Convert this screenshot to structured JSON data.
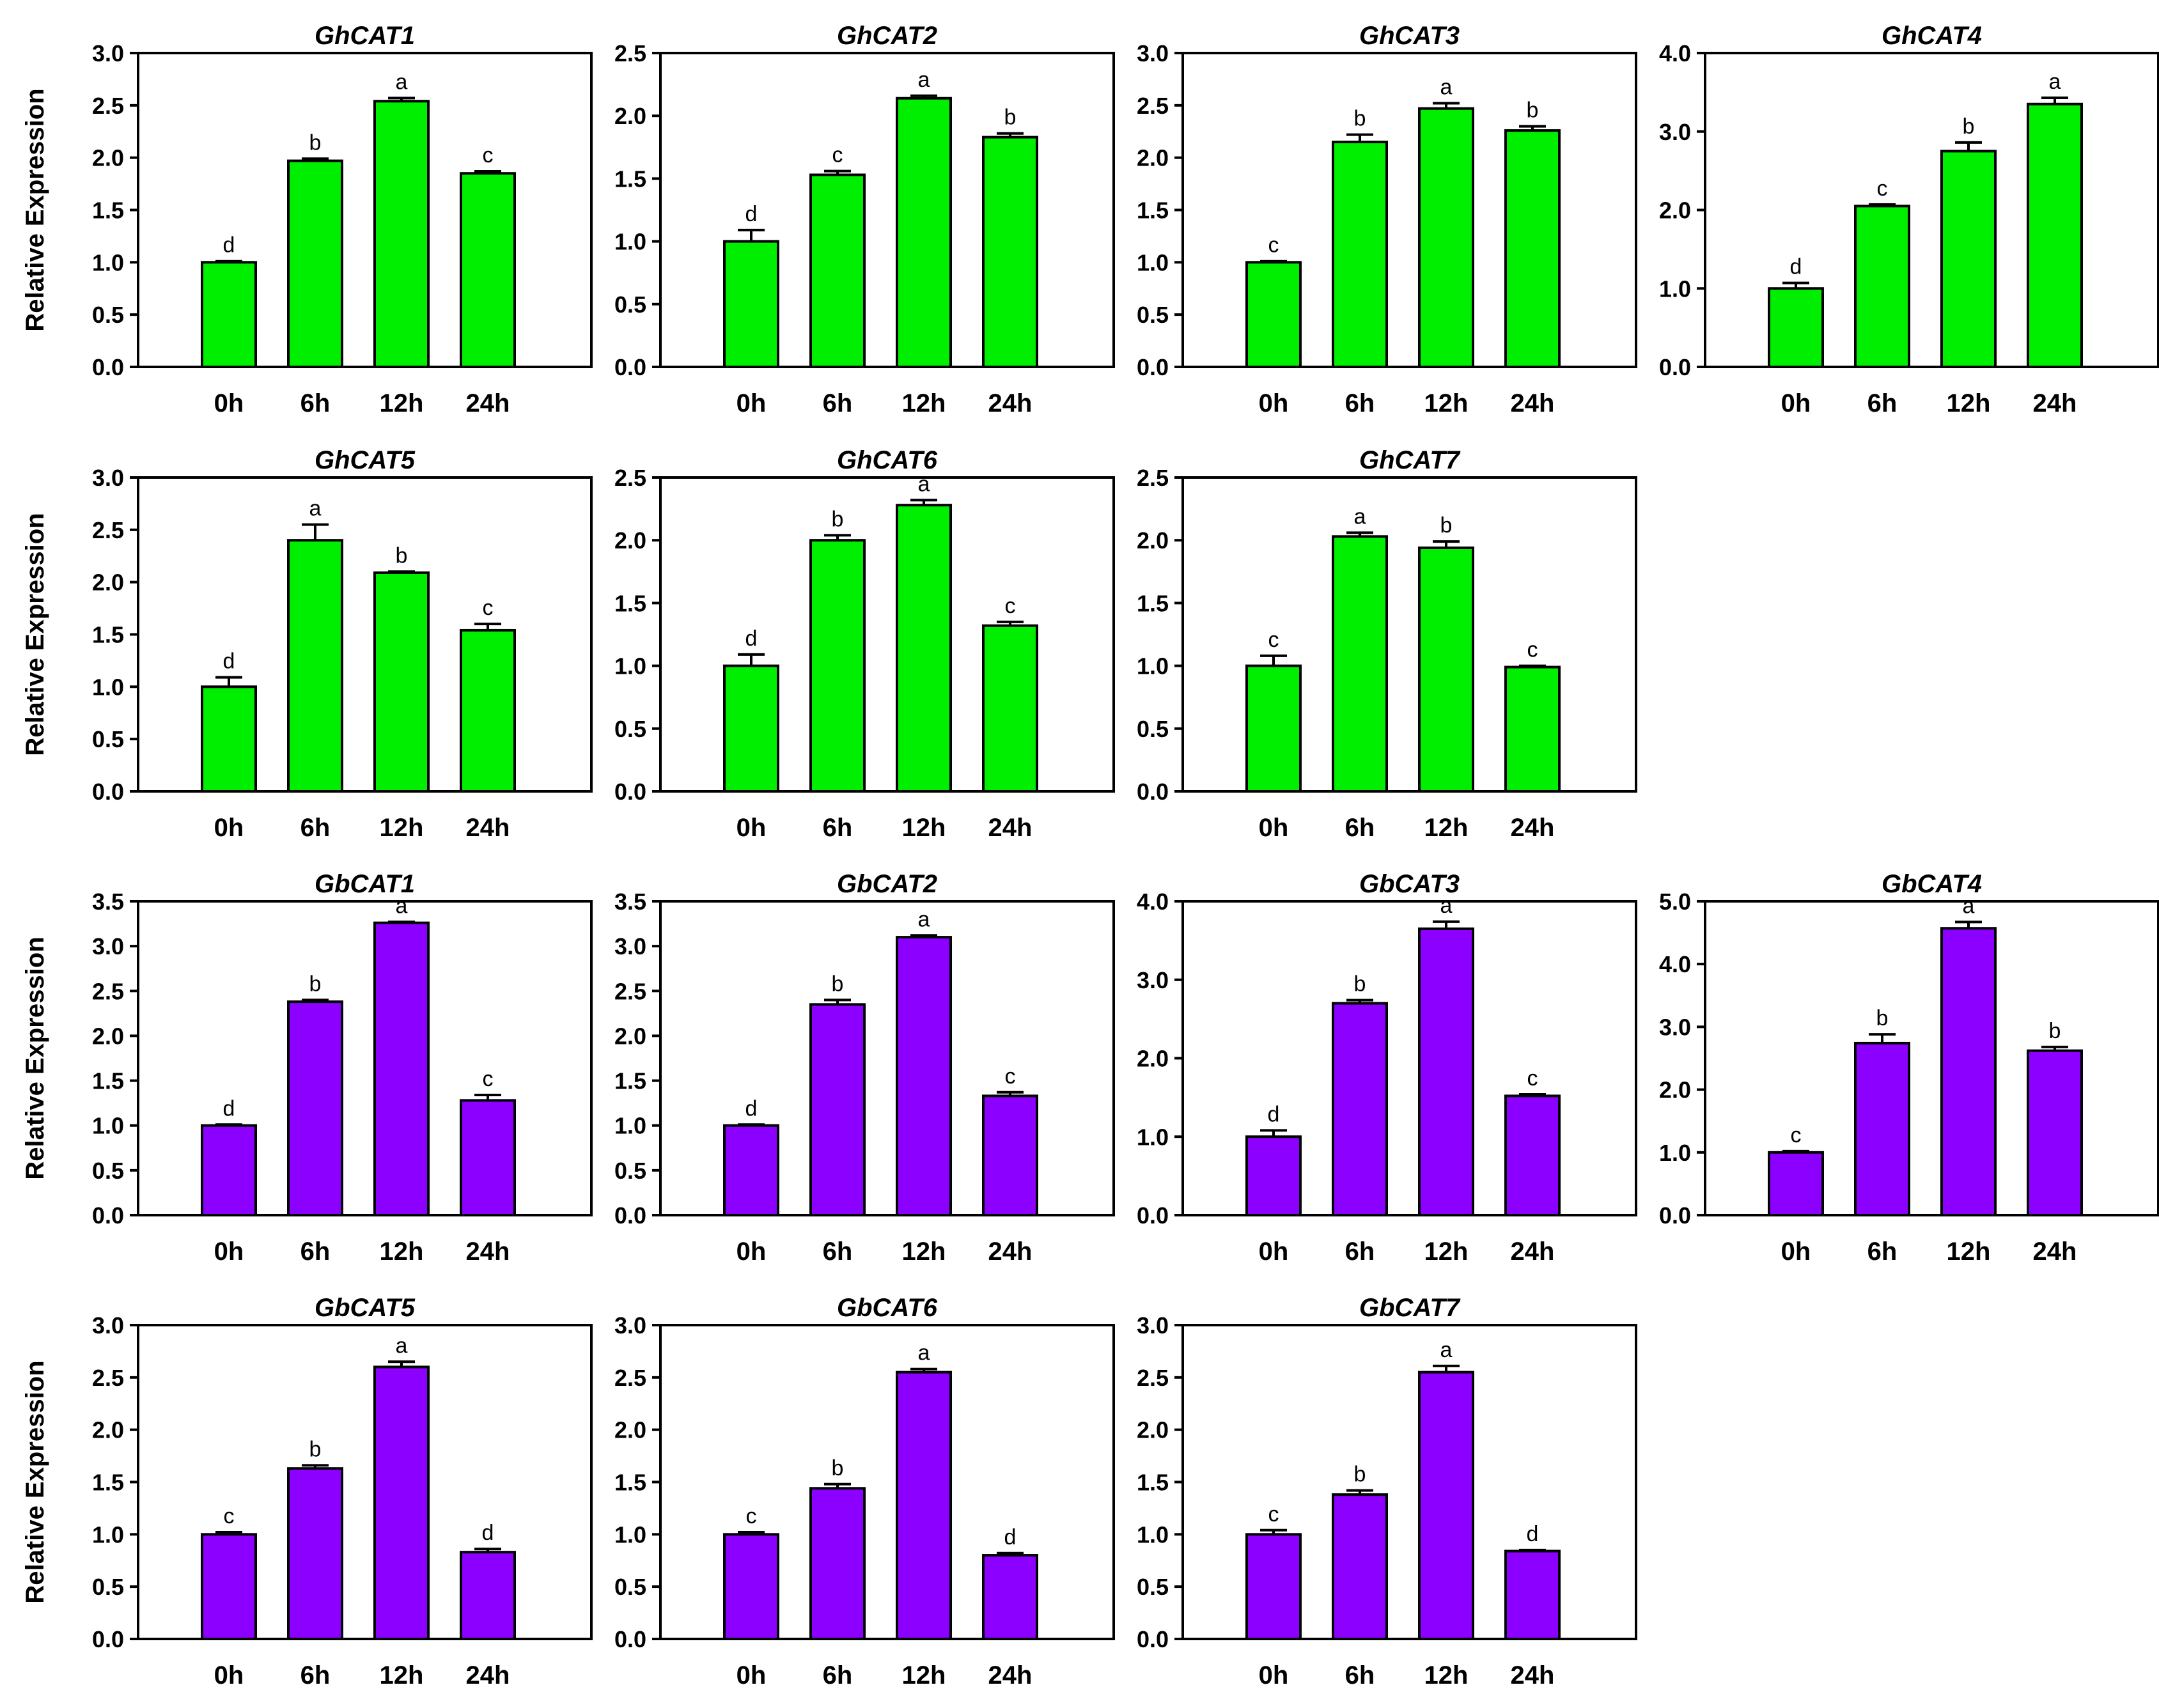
{
  "figure": {
    "ylabel": "Relative Expression",
    "colors": {
      "gh": "#00ee00",
      "gb": "#8b00ff",
      "axis": "#000000"
    }
  },
  "chart_data": [
    {
      "type": "bar",
      "title": "GhCAT1",
      "ylabel": "Relative Expression",
      "ylim": [
        0,
        3.0
      ],
      "yticks": [
        "0.0",
        "0.5",
        "1.0",
        "1.5",
        "2.0",
        "2.5",
        "3.0"
      ],
      "categories": [
        "0h",
        "6h",
        "12h",
        "24h"
      ],
      "values": [
        1.0,
        1.97,
        2.54,
        1.85
      ],
      "errors": [
        0.01,
        0.02,
        0.03,
        0.02
      ],
      "labels": [
        "d",
        "b",
        "a",
        "c"
      ],
      "color": "gh"
    },
    {
      "type": "bar",
      "title": "GhCAT2",
      "ylabel": "",
      "ylim": [
        0,
        2.5
      ],
      "yticks": [
        "0.0",
        "0.5",
        "1.0",
        "1.5",
        "2.0",
        "2.5"
      ],
      "categories": [
        "0h",
        "6h",
        "12h",
        "24h"
      ],
      "values": [
        1.0,
        1.53,
        2.14,
        1.83
      ],
      "errors": [
        0.09,
        0.03,
        0.02,
        0.03
      ],
      "labels": [
        "d",
        "c",
        "a",
        "b"
      ],
      "color": "gh"
    },
    {
      "type": "bar",
      "title": "GhCAT3",
      "ylabel": "",
      "ylim": [
        0,
        3.0
      ],
      "yticks": [
        "0.0",
        "0.5",
        "1.0",
        "1.5",
        "2.0",
        "2.5",
        "3.0"
      ],
      "categories": [
        "0h",
        "6h",
        "12h",
        "24h"
      ],
      "values": [
        1.0,
        2.15,
        2.47,
        2.26
      ],
      "errors": [
        0.01,
        0.07,
        0.05,
        0.04
      ],
      "labels": [
        "c",
        "b",
        "a",
        "b"
      ],
      "color": "gh"
    },
    {
      "type": "bar",
      "title": "GhCAT4",
      "ylabel": "",
      "ylim": [
        0,
        4.0
      ],
      "yticks": [
        "0.0",
        "1.0",
        "2.0",
        "3.0",
        "4.0"
      ],
      "categories": [
        "0h",
        "6h",
        "12h",
        "24h"
      ],
      "values": [
        1.0,
        2.05,
        2.75,
        3.35
      ],
      "errors": [
        0.07,
        0.02,
        0.11,
        0.08
      ],
      "labels": [
        "d",
        "c",
        "b",
        "a"
      ],
      "color": "gh"
    },
    {
      "type": "bar",
      "title": "GhCAT5",
      "ylabel": "Relative Expression",
      "ylim": [
        0,
        3.0
      ],
      "yticks": [
        "0.0",
        "0.5",
        "1.0",
        "1.5",
        "2.0",
        "2.5",
        "3.0"
      ],
      "categories": [
        "0h",
        "6h",
        "12h",
        "24h"
      ],
      "values": [
        1.0,
        2.4,
        2.09,
        1.54
      ],
      "errors": [
        0.09,
        0.15,
        0.01,
        0.06
      ],
      "labels": [
        "d",
        "a",
        "b",
        "c"
      ],
      "color": "gh"
    },
    {
      "type": "bar",
      "title": "GhCAT6",
      "ylabel": "",
      "ylim": [
        0,
        2.5
      ],
      "yticks": [
        "0.0",
        "0.5",
        "1.0",
        "1.5",
        "2.0",
        "2.5"
      ],
      "categories": [
        "0h",
        "6h",
        "12h",
        "24h"
      ],
      "values": [
        1.0,
        2.0,
        2.28,
        1.32
      ],
      "errors": [
        0.09,
        0.04,
        0.04,
        0.03
      ],
      "labels": [
        "d",
        "b",
        "a",
        "c"
      ],
      "color": "gh"
    },
    {
      "type": "bar",
      "title": "GhCAT7",
      "ylabel": "",
      "ylim": [
        0,
        2.5
      ],
      "yticks": [
        "0.0",
        "0.5",
        "1.0",
        "1.5",
        "2.0",
        "2.5"
      ],
      "categories": [
        "0h",
        "6h",
        "12h",
        "24h"
      ],
      "values": [
        1.0,
        2.03,
        1.94,
        0.99
      ],
      "errors": [
        0.08,
        0.03,
        0.05,
        0.01
      ],
      "labels": [
        "c",
        "a",
        "b",
        "c"
      ],
      "color": "gh"
    },
    {
      "type": "bar",
      "title": "GbCAT1",
      "ylabel": "Relative Expression",
      "ylim": [
        0,
        3.5
      ],
      "yticks": [
        "0.0",
        "0.5",
        "1.0",
        "1.5",
        "2.0",
        "2.5",
        "3.0",
        "3.5"
      ],
      "categories": [
        "0h",
        "6h",
        "12h",
        "24h"
      ],
      "values": [
        1.0,
        2.38,
        3.26,
        1.28
      ],
      "errors": [
        0.01,
        0.02,
        0.01,
        0.06
      ],
      "labels": [
        "d",
        "b",
        "a",
        "c"
      ],
      "color": "gb"
    },
    {
      "type": "bar",
      "title": "GbCAT2",
      "ylabel": "",
      "ylim": [
        0,
        3.5
      ],
      "yticks": [
        "0.0",
        "0.5",
        "1.0",
        "1.5",
        "2.0",
        "2.5",
        "3.0",
        "3.5"
      ],
      "categories": [
        "0h",
        "6h",
        "12h",
        "24h"
      ],
      "values": [
        1.0,
        2.35,
        3.1,
        1.33
      ],
      "errors": [
        0.01,
        0.05,
        0.02,
        0.04
      ],
      "labels": [
        "d",
        "b",
        "a",
        "c"
      ],
      "color": "gb"
    },
    {
      "type": "bar",
      "title": "GbCAT3",
      "ylabel": "",
      "ylim": [
        0,
        4.0
      ],
      "yticks": [
        "0.0",
        "1.0",
        "2.0",
        "3.0",
        "4.0"
      ],
      "categories": [
        "0h",
        "6h",
        "12h",
        "24h"
      ],
      "values": [
        1.0,
        2.7,
        3.65,
        1.52
      ],
      "errors": [
        0.08,
        0.04,
        0.09,
        0.02
      ],
      "labels": [
        "d",
        "b",
        "a",
        "c"
      ],
      "color": "gb"
    },
    {
      "type": "bar",
      "title": "GbCAT4",
      "ylabel": "",
      "ylim": [
        0,
        5.0
      ],
      "yticks": [
        "0.0",
        "1.0",
        "2.0",
        "3.0",
        "4.0",
        "5.0"
      ],
      "categories": [
        "0h",
        "6h",
        "12h",
        "24h"
      ],
      "values": [
        1.0,
        2.74,
        4.57,
        2.62
      ],
      "errors": [
        0.02,
        0.14,
        0.1,
        0.06
      ],
      "labels": [
        "c",
        "b",
        "a",
        "b"
      ],
      "color": "gb"
    },
    {
      "type": "bar",
      "title": "GbCAT5",
      "ylabel": "Relative Expression",
      "ylim": [
        0,
        3.0
      ],
      "yticks": [
        "0.0",
        "0.5",
        "1.0",
        "1.5",
        "2.0",
        "2.5",
        "3.0"
      ],
      "categories": [
        "0h",
        "6h",
        "12h",
        "24h"
      ],
      "values": [
        1.0,
        1.63,
        2.6,
        0.83
      ],
      "errors": [
        0.02,
        0.03,
        0.05,
        0.03
      ],
      "labels": [
        "c",
        "b",
        "a",
        "d"
      ],
      "color": "gb"
    },
    {
      "type": "bar",
      "title": "GbCAT6",
      "ylabel": "",
      "ylim": [
        0,
        3.0
      ],
      "yticks": [
        "0.0",
        "0.5",
        "1.0",
        "1.5",
        "2.0",
        "2.5",
        "3.0"
      ],
      "categories": [
        "0h",
        "6h",
        "12h",
        "24h"
      ],
      "values": [
        1.0,
        1.44,
        2.55,
        0.8
      ],
      "errors": [
        0.02,
        0.04,
        0.03,
        0.02
      ],
      "labels": [
        "c",
        "b",
        "a",
        "d"
      ],
      "color": "gb"
    },
    {
      "type": "bar",
      "title": "GbCAT7",
      "ylabel": "",
      "ylim": [
        0,
        3.0
      ],
      "yticks": [
        "0.0",
        "0.5",
        "1.0",
        "1.5",
        "2.0",
        "2.5",
        "3.0"
      ],
      "categories": [
        "0h",
        "6h",
        "12h",
        "24h"
      ],
      "values": [
        1.0,
        1.38,
        2.55,
        0.84
      ],
      "errors": [
        0.04,
        0.04,
        0.06,
        0.01
      ],
      "labels": [
        "c",
        "b",
        "a",
        "d"
      ],
      "color": "gb"
    }
  ]
}
